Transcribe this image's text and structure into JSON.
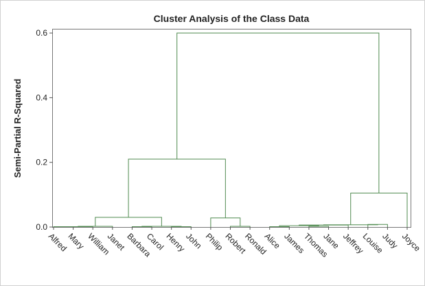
{
  "chart_data": {
    "type": "dendrogram",
    "title": "Cluster Analysis of the Class Data",
    "y_label": "Semi-Partial R-Squared",
    "leaves": [
      "Alfred",
      "Mary",
      "William",
      "Janet",
      "Barbara",
      "Carol",
      "Henry",
      "John",
      "Philip",
      "Robert",
      "Ronald",
      "Alice",
      "James",
      "Thomas",
      "Jane",
      "Jeffrey",
      "Louise",
      "Judy",
      "Joyce"
    ],
    "merges": [
      {
        "left": 0,
        "right": 1,
        "height": 0.001
      },
      {
        "left": 19,
        "right": 2,
        "height": 0.001
      },
      {
        "left": 20,
        "right": 3,
        "height": 0.002
      },
      {
        "left": 4,
        "right": 5,
        "height": 0.001
      },
      {
        "left": 6,
        "right": 7,
        "height": 0.001
      },
      {
        "left": 22,
        "right": 23,
        "height": 0.002
      },
      {
        "left": 21,
        "right": 24,
        "height": 0.03
      },
      {
        "left": 9,
        "right": 10,
        "height": 0.002
      },
      {
        "left": 8,
        "right": 26,
        "height": 0.028
      },
      {
        "left": 25,
        "right": 27,
        "height": 0.21
      },
      {
        "left": 11,
        "right": 12,
        "height": 0.001
      },
      {
        "left": 13,
        "right": 14,
        "height": 0.002
      },
      {
        "left": 29,
        "right": 30,
        "height": 0.004
      },
      {
        "left": 31,
        "right": 15,
        "height": 0.006
      },
      {
        "left": 16,
        "right": 17,
        "height": 0.008
      },
      {
        "left": 32,
        "right": 33,
        "height": 0.007
      },
      {
        "left": 34,
        "right": 18,
        "height": 0.105
      },
      {
        "left": 28,
        "right": 35,
        "height": 0.6
      }
    ],
    "color": "#4f8a4f",
    "ylim": [
      0,
      0.613
    ],
    "yticks": [
      {
        "value": 0,
        "label": "0.0"
      },
      {
        "value": 0.2,
        "label": "0.2"
      },
      {
        "value": 0.4,
        "label": "0.4"
      },
      {
        "value": 0.6,
        "label": "0.6"
      }
    ]
  }
}
